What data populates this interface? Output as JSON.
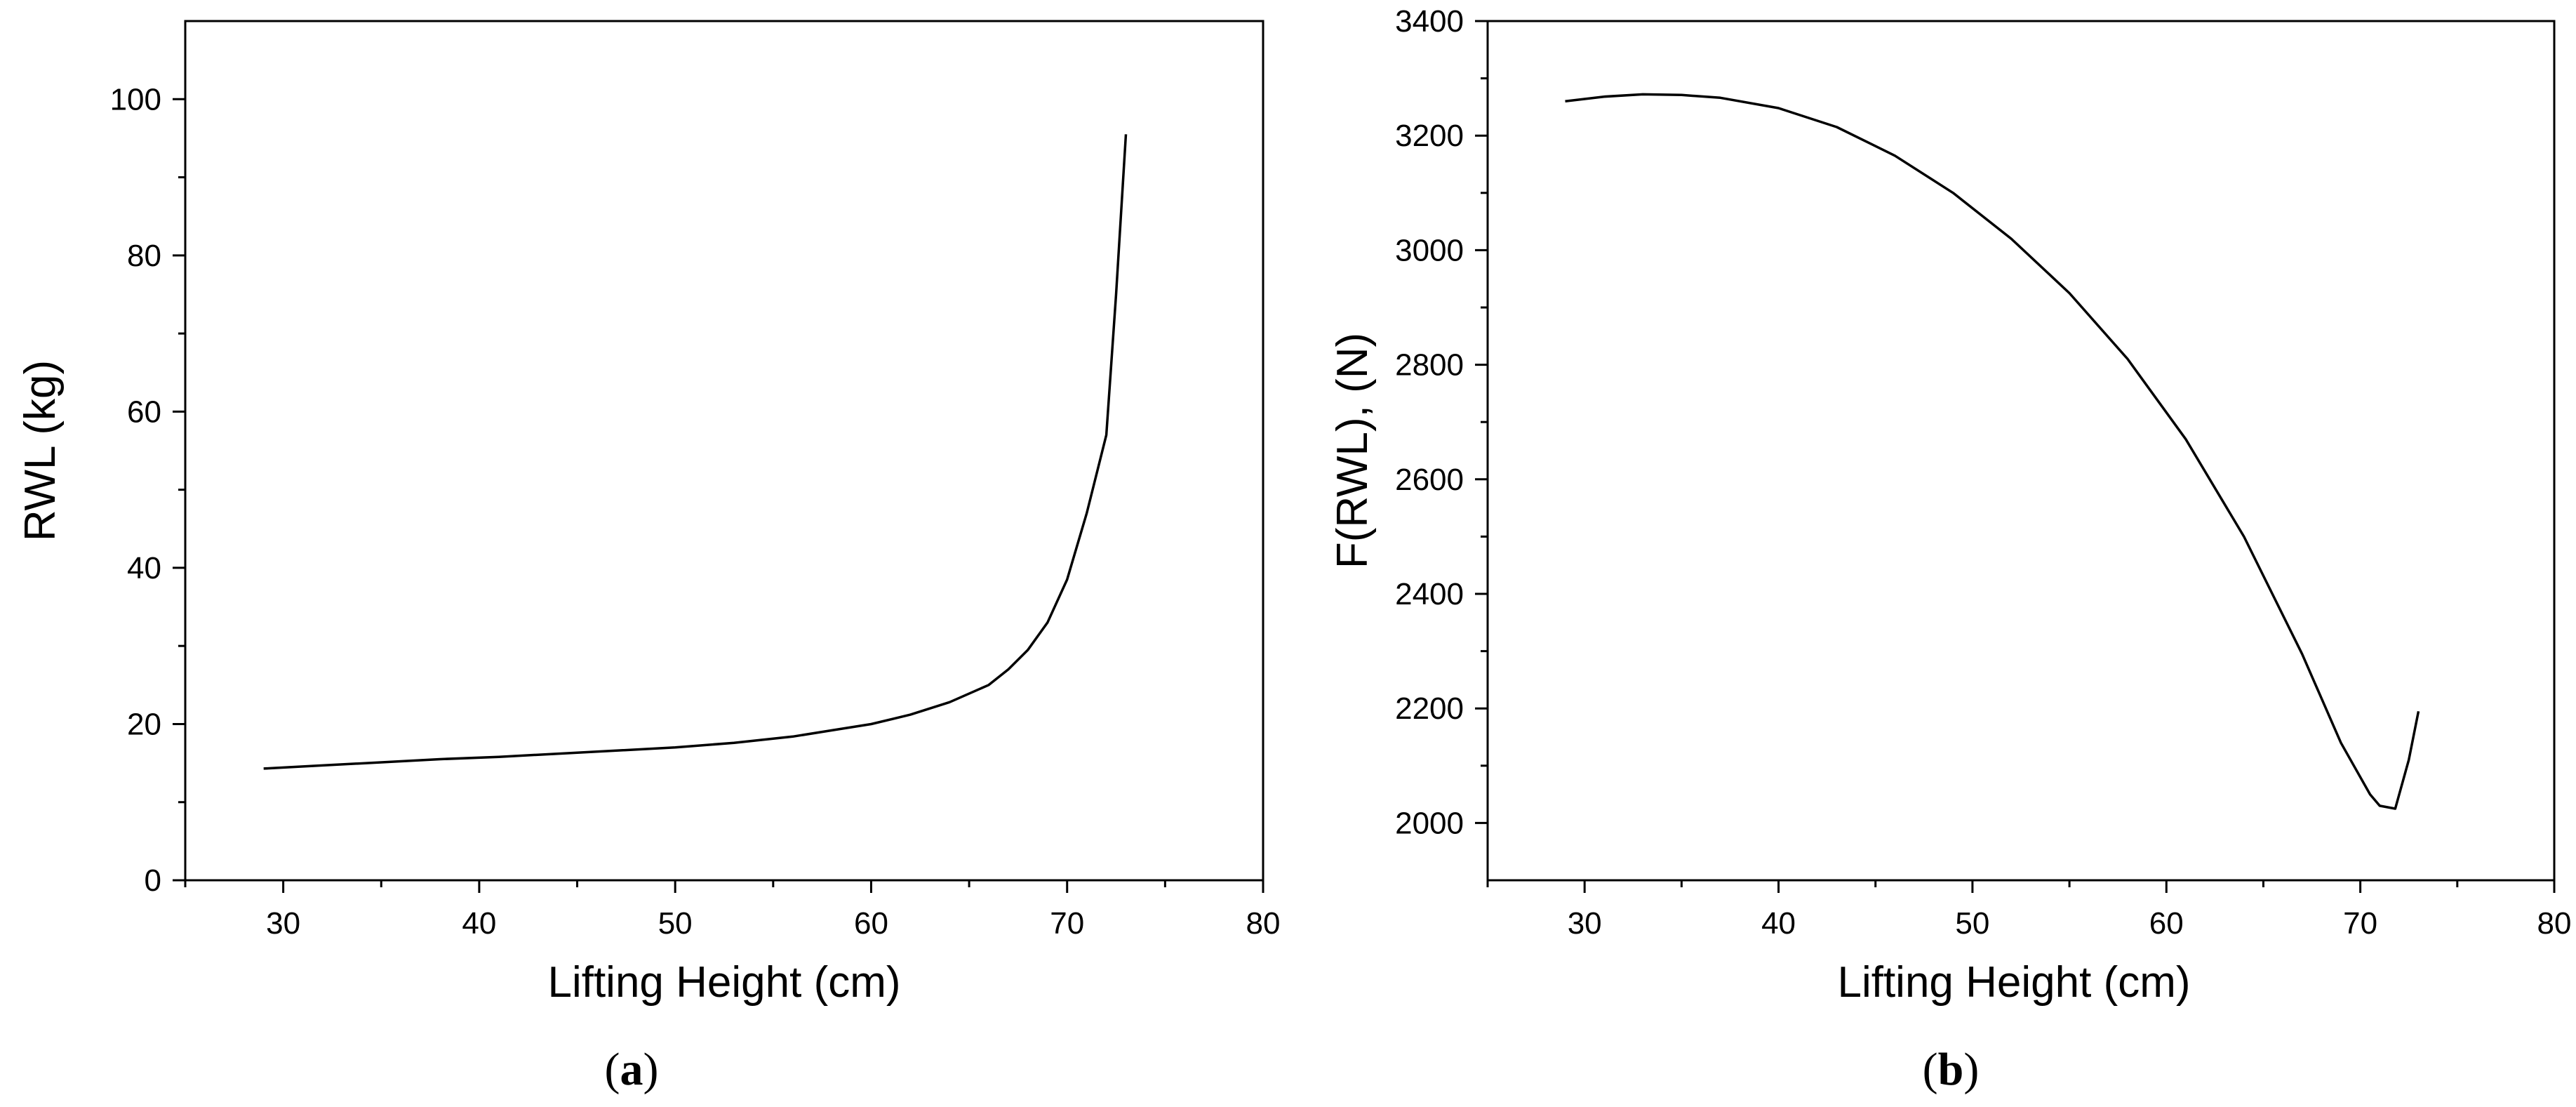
{
  "chart_data": [
    {
      "type": "line",
      "panel_label": "a",
      "xlabel": "Lifting Height (cm)",
      "ylabel": "RWL (kg)",
      "xlim": [
        25,
        80
      ],
      "ylim": [
        0,
        110
      ],
      "xticks": [
        30,
        40,
        50,
        60,
        70,
        80
      ],
      "xtick_labels": [
        "30",
        "40",
        "50",
        "60",
        "70",
        "80"
      ],
      "yticks": [
        0,
        20,
        40,
        60,
        80,
        100
      ],
      "ytick_labels": [
        "0",
        "20",
        "40",
        "60",
        "80",
        "100"
      ],
      "grid": false,
      "series": [
        {
          "x": [
            29,
            32,
            35,
            38,
            41,
            44,
            47,
            50,
            53,
            56,
            58,
            60,
            62,
            64,
            66,
            67,
            68,
            69,
            70,
            71,
            72,
            72.5,
            73
          ],
          "y": [
            14.3,
            14.7,
            15.1,
            15.5,
            15.8,
            16.2,
            16.6,
            17.0,
            17.6,
            18.4,
            19.2,
            20.0,
            21.2,
            22.8,
            25.0,
            27.0,
            29.5,
            33.0,
            38.5,
            47.0,
            57.0,
            75.0,
            95.5
          ]
        }
      ]
    },
    {
      "type": "line",
      "panel_label": "b",
      "xlabel": "Lifting Height (cm)",
      "ylabel": "F(RWL), (N)",
      "xlim": [
        25,
        80
      ],
      "ylim": [
        1900,
        3400
      ],
      "xticks": [
        30,
        40,
        50,
        60,
        70,
        80
      ],
      "xtick_labels": [
        "30",
        "40",
        "50",
        "60",
        "70",
        "80"
      ],
      "yticks": [
        2000,
        2200,
        2400,
        2600,
        2800,
        3000,
        3200,
        3400
      ],
      "ytick_labels": [
        "2000",
        "2200",
        "2400",
        "2600",
        "2800",
        "3000",
        "3200",
        "3400"
      ],
      "grid": false,
      "series": [
        {
          "x": [
            29,
            31,
            33,
            35,
            37,
            40,
            43,
            46,
            49,
            52,
            55,
            58,
            61,
            64,
            67,
            69,
            70.5,
            71,
            71.8,
            72.5,
            73
          ],
          "y": [
            3260,
            3268,
            3272,
            3271,
            3266,
            3248,
            3215,
            3165,
            3100,
            3020,
            2925,
            2810,
            2670,
            2500,
            2295,
            2140,
            2050,
            2030,
            2025,
            2110,
            2195
          ]
        }
      ]
    }
  ]
}
